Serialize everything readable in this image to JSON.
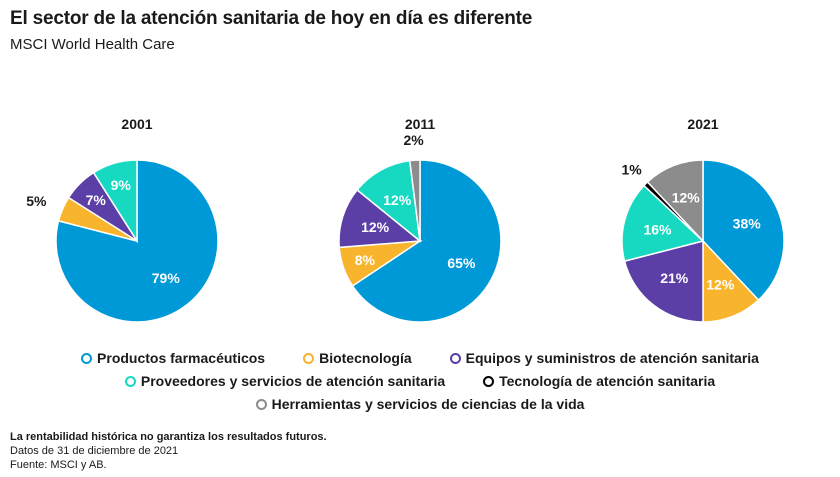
{
  "title": "El sector de la atención sanitaria de hoy en día es diferente",
  "subtitle": "MSCI World Health Care",
  "chart_data": {
    "type": "pie",
    "categories": [
      "Productos farmacéuticos",
      "Biotecnología",
      "Equipos y suministros de atención sanitaria",
      "Proveedores y servicios de atención sanitaria",
      "Tecnología de atención sanitaria",
      "Herramientas y servicios de ciencias de la vida"
    ],
    "colors": [
      "#0099d8",
      "#f7b42c",
      "#5b3fa6",
      "#17d9c2",
      "#000000",
      "#8c8c8c"
    ],
    "pies": [
      {
        "label": "2001",
        "values": [
          79,
          5,
          7,
          9,
          0,
          0
        ],
        "value_labels": [
          "79%",
          "5%",
          "7%",
          "9%",
          "",
          ""
        ]
      },
      {
        "label": "2011",
        "values": [
          65,
          8,
          12,
          12,
          0,
          2
        ],
        "value_labels": [
          "65%",
          "8%",
          "12%",
          "12%",
          "",
          "2%"
        ]
      },
      {
        "label": "2021",
        "values": [
          38,
          12,
          21,
          16,
          1,
          12
        ],
        "value_labels": [
          "38%",
          "12%",
          "21%",
          "16%",
          "1%",
          "12%"
        ]
      }
    ],
    "legend_position": "bottom"
  },
  "footer": {
    "disclaimer": "La rentabilidad histórica no garantiza los resultados futuros.",
    "date": "Datos de 31 de diciembre de 2021",
    "source": "Fuente: MSCI y AB."
  }
}
